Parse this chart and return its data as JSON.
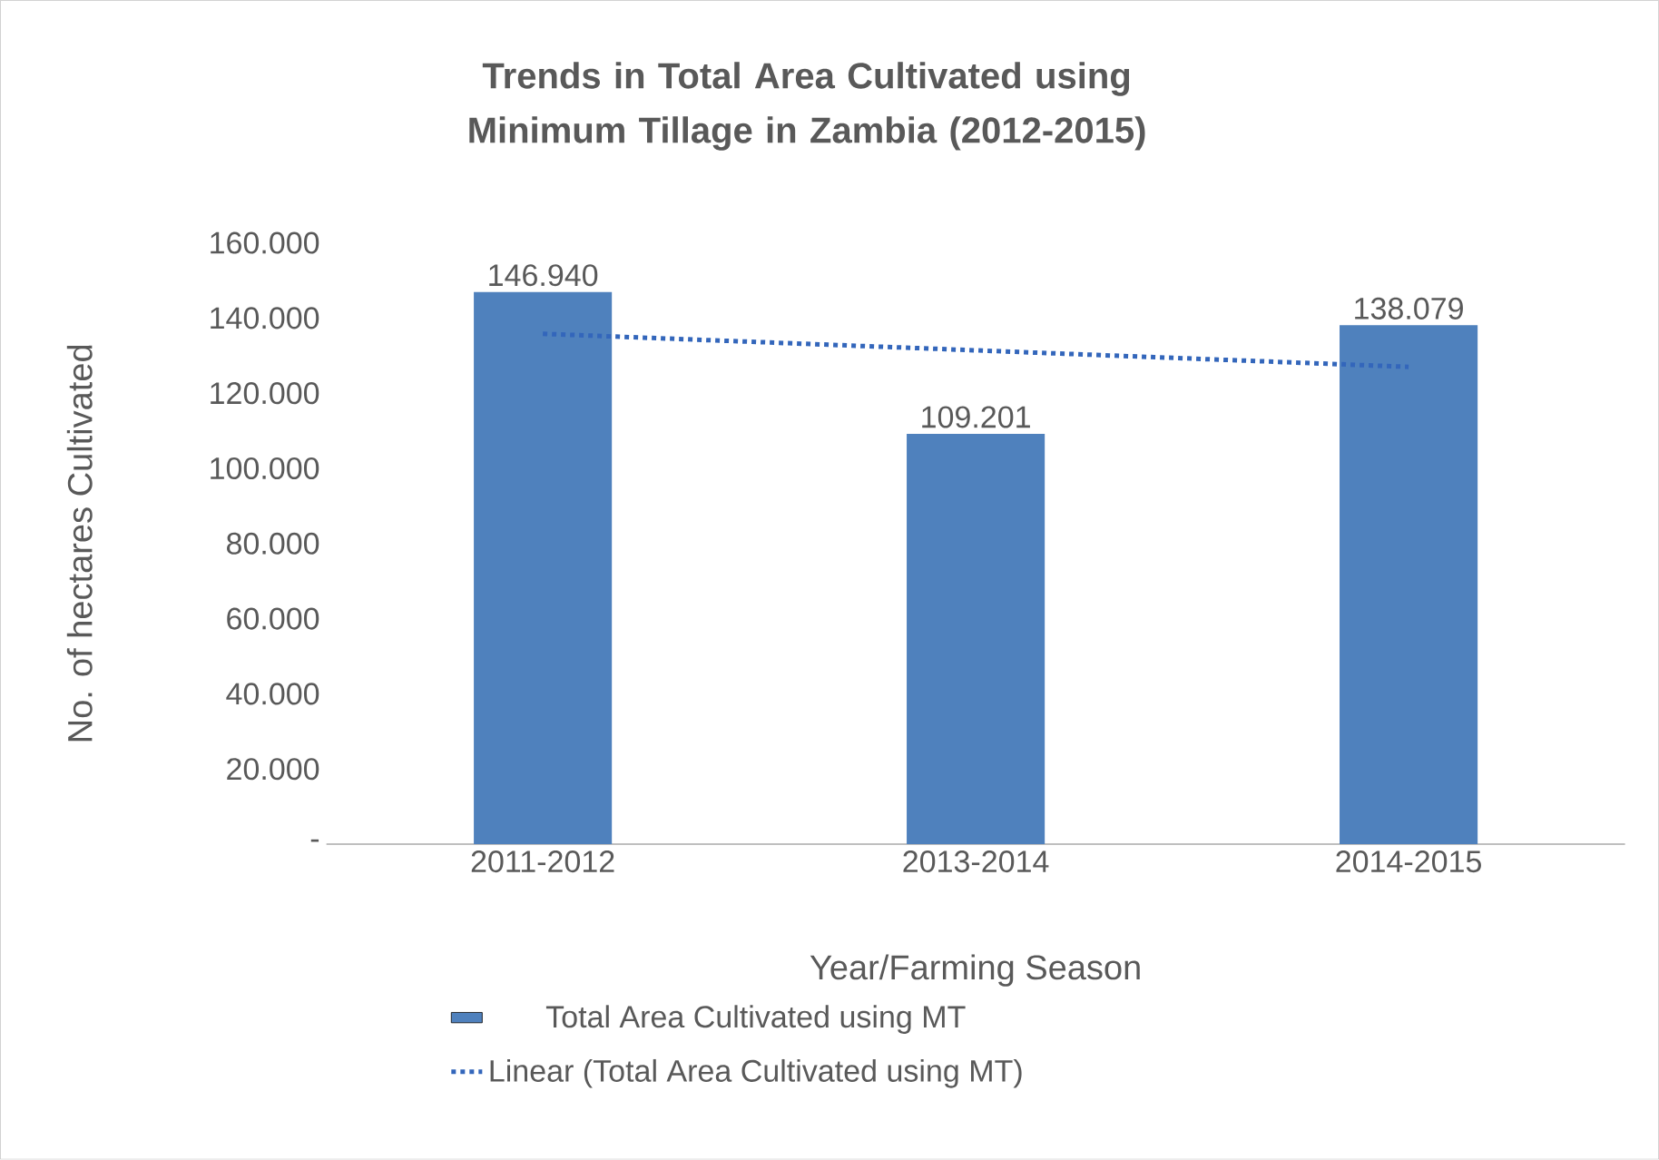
{
  "chart_data": {
    "type": "bar",
    "title": "Trends in Total Area Cultivated using Minimum Tillage in Zambia (2012-2015)",
    "xlabel": "Year/Farming Season",
    "ylabel": "No. of hectares Cultivated",
    "categories": [
      "2011-2012",
      "2013-2014",
      "2014-2015"
    ],
    "series": [
      {
        "name": "Total Area Cultivated using MT",
        "color": "#4f81bd",
        "values": [
          146940,
          109201,
          138079
        ],
        "value_labels": [
          "146.940",
          "109.201",
          "138.079"
        ]
      },
      {
        "name": "Linear (Total Area Cultivated using MT)",
        "type": "line",
        "line_style": "dotted",
        "color": "#3366bb",
        "values": [
          135800,
          131400,
          127000
        ]
      }
    ],
    "ylim": [
      0,
      160000
    ],
    "yticks": [
      {
        "value": 0,
        "label": "-"
      },
      {
        "value": 20000,
        "label": "20.000"
      },
      {
        "value": 40000,
        "label": "40.000"
      },
      {
        "value": 60000,
        "label": "60.000"
      },
      {
        "value": 80000,
        "label": "80.000"
      },
      {
        "value": 100000,
        "label": "100.000"
      },
      {
        "value": 120000,
        "label": "120.000"
      },
      {
        "value": 140000,
        "label": "140.000"
      },
      {
        "value": 160000,
        "label": "160.000"
      }
    ],
    "grid": false,
    "legend": "bottom"
  }
}
